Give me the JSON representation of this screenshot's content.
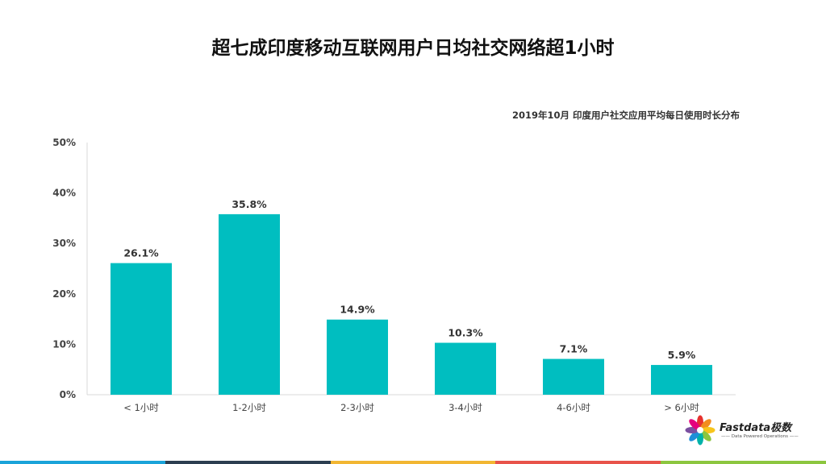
{
  "title": "超七成印度移动互联网用户日均社交网络超1小时",
  "subtitle": "2019年10月 印度用户社交应用平均每日使用时长分布",
  "chart_data": {
    "type": "bar",
    "categories": [
      "< 1小时",
      "1-2小时",
      "2-3小时",
      "3-4小时",
      "4-6小时",
      "> 6小时"
    ],
    "values": [
      26.1,
      35.8,
      14.9,
      10.3,
      7.1,
      5.9
    ],
    "value_labels": [
      "26.1%",
      "35.8%",
      "14.9%",
      "10.3%",
      "7.1%",
      "5.9%"
    ],
    "y_ticks": [
      "0%",
      "10%",
      "20%",
      "30%",
      "40%",
      "50%"
    ],
    "ylim": [
      0,
      50
    ],
    "grid": false,
    "bar_color": "#00bec0"
  },
  "logo": {
    "name": "Fastdata极数",
    "tagline": "—— Data Powered Operations ——",
    "petal_colors": [
      "#e6312e",
      "#f28c1e",
      "#f7c51c",
      "#8cc63f",
      "#00b2a9",
      "#1e8fd8",
      "#7a4fa0",
      "#e5007e"
    ]
  },
  "footer_colors": [
    "#1aa3d9",
    "#2c3e50",
    "#f2b632",
    "#e8534a",
    "#8cc63f"
  ]
}
